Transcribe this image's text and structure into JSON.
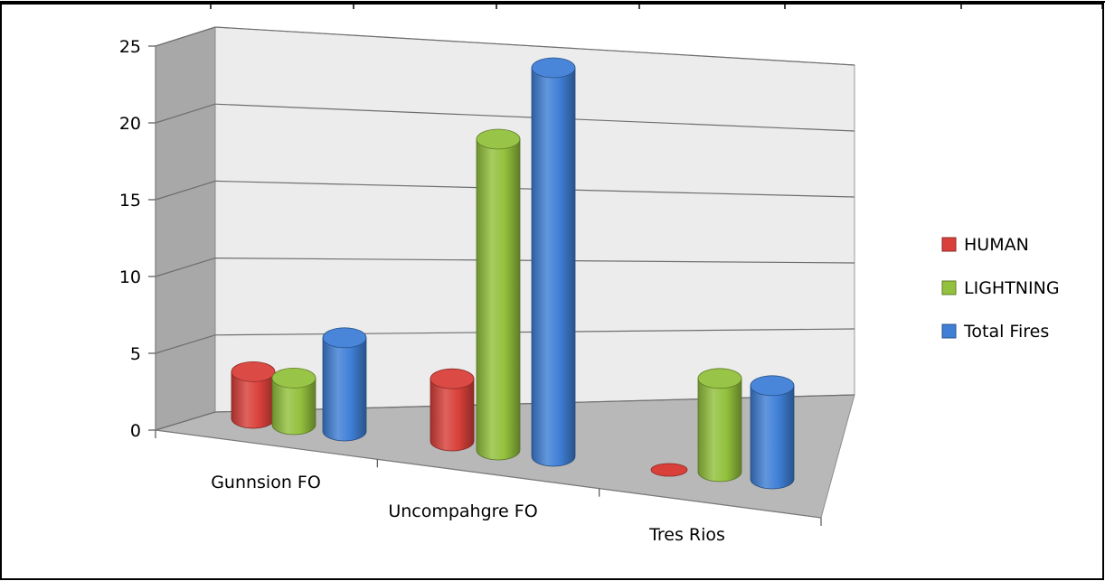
{
  "chart_data": {
    "type": "bar",
    "style": "3d-cylinder",
    "categories": [
      "Gunnsion FO",
      "Uncompahgre FO",
      "Tres Rios"
    ],
    "series": [
      {
        "name": "HUMAN",
        "values": [
          3,
          4,
          0
        ],
        "color": "#d9403a"
      },
      {
        "name": "LIGHTNING",
        "values": [
          3,
          20,
          6
        ],
        "color": "#93c13d"
      },
      {
        "name": "Total Fires",
        "values": [
          6,
          25,
          6
        ],
        "color": "#3f7fd6"
      }
    ],
    "yticks": [
      "0",
      "5",
      "10",
      "15",
      "20",
      "25"
    ],
    "ylim": [
      0,
      25
    ],
    "grid": true,
    "legend_position": "right"
  }
}
